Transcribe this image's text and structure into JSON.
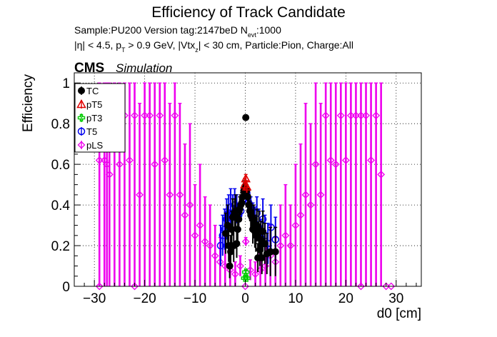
{
  "chart_data": {
    "type": "scatter",
    "title": "Efficiency of Track Candidate",
    "subtitle_lines": [
      "Sample:PU200   Version tag:2147beD  N_evt:1000",
      "|η| < 4.5, p_T > 0.9 GeV, |Vtx_z| < 30 cm, Particle:Pion, Charge:All"
    ],
    "subtitle1": {
      "main": "Sample:PU200   Version tag:2147beD  N",
      "sub": "evt",
      "tail": ":1000"
    },
    "subtitle2": {
      "a": "|η| < 4.5, p",
      "a_sub": "T",
      "b": " > 0.9 GeV, |Vtx",
      "b_sub": "z",
      "c": "| < 30 cm, Particle:Pion, Charge:All"
    },
    "cms_label": "CMS",
    "simulation_label": "Simulation",
    "xlabel": "d0 [cm]",
    "ylabel": "Efficiency",
    "xlim": [
      -34,
      35
    ],
    "ylim": [
      0,
      1.05
    ],
    "x_ticks": [
      -30,
      -20,
      -10,
      0,
      10,
      20,
      30
    ],
    "x_tick_labels": [
      "−30",
      "−20",
      "−10",
      "0",
      "10",
      "20",
      "30"
    ],
    "y_ticks": [
      0,
      0.2,
      0.4,
      0.6,
      0.8,
      1
    ],
    "y_tick_labels": [
      "0",
      "0.2",
      "0.4",
      "0.6",
      "0.8",
      "1"
    ],
    "grid": true,
    "legend_position": "top-left",
    "series": [
      {
        "name": "TC",
        "color": "#000000",
        "marker": "filled-circle",
        "points": [
          {
            "x": -3.9,
            "y": 0.26,
            "err": 0.1
          },
          {
            "x": -3.5,
            "y": 0.3,
            "err": 0.1
          },
          {
            "x": -3.3,
            "y": 0.2,
            "err": 0.08
          },
          {
            "x": -3.1,
            "y": 0.1,
            "err": 0.06
          },
          {
            "x": -2.9,
            "y": 0.17,
            "err": 0.08
          },
          {
            "x": -2.7,
            "y": 0.28,
            "err": 0.09
          },
          {
            "x": -2.5,
            "y": 0.34,
            "err": 0.09
          },
          {
            "x": -2.3,
            "y": 0.2,
            "err": 0.08
          },
          {
            "x": -2.1,
            "y": 0.35,
            "err": 0.08
          },
          {
            "x": -1.9,
            "y": 0.37,
            "err": 0.08
          },
          {
            "x": -1.7,
            "y": 0.21,
            "err": 0.07
          },
          {
            "x": -1.5,
            "y": 0.28,
            "err": 0.07
          },
          {
            "x": -1.3,
            "y": 0.33,
            "err": 0.06
          },
          {
            "x": -1.1,
            "y": 0.38,
            "err": 0.06
          },
          {
            "x": -0.9,
            "y": 0.4,
            "err": 0.05
          },
          {
            "x": -0.7,
            "y": 0.41,
            "err": 0.05
          },
          {
            "x": -0.5,
            "y": 0.44,
            "err": 0.04
          },
          {
            "x": -0.3,
            "y": 0.47,
            "err": 0.03
          },
          {
            "x": -0.1,
            "y": 0.49,
            "err": 0.03
          },
          {
            "x": 0.1,
            "y": 0.83,
            "err": 0.01
          },
          {
            "x": 0.3,
            "y": 0.47,
            "err": 0.03
          },
          {
            "x": 0.5,
            "y": 0.44,
            "err": 0.04
          },
          {
            "x": 0.7,
            "y": 0.4,
            "err": 0.05
          },
          {
            "x": 0.9,
            "y": 0.37,
            "err": 0.05
          },
          {
            "x": 1.1,
            "y": 0.35,
            "err": 0.06
          },
          {
            "x": 1.3,
            "y": 0.34,
            "err": 0.06
          },
          {
            "x": 1.5,
            "y": 0.28,
            "err": 0.07
          },
          {
            "x": 1.7,
            "y": 0.33,
            "err": 0.07
          },
          {
            "x": 1.9,
            "y": 0.27,
            "err": 0.08
          },
          {
            "x": 2.1,
            "y": 0.25,
            "err": 0.08
          },
          {
            "x": 2.3,
            "y": 0.3,
            "err": 0.08
          },
          {
            "x": 2.5,
            "y": 0.14,
            "err": 0.07
          },
          {
            "x": 2.7,
            "y": 0.28,
            "err": 0.09
          },
          {
            "x": 2.9,
            "y": 0.18,
            "err": 0.08
          },
          {
            "x": 3.1,
            "y": 0.23,
            "err": 0.09
          },
          {
            "x": 3.3,
            "y": 0.14,
            "err": 0.08
          },
          {
            "x": 3.5,
            "y": 0.27,
            "err": 0.1
          },
          {
            "x": 3.9,
            "y": 0.21,
            "err": 0.1
          },
          {
            "x": 4.3,
            "y": 0.16,
            "err": 0.1
          },
          {
            "x": 5.0,
            "y": 0.17,
            "err": 0.12
          },
          {
            "x": 6.0,
            "y": 0.17,
            "err": 0.12
          }
        ]
      },
      {
        "name": "pT5",
        "color": "#e00000",
        "marker": "open-triangle",
        "points": [
          {
            "x": -0.1,
            "y": 0.5,
            "err": 0.03
          },
          {
            "x": 0.1,
            "y": 0.53,
            "err": 0.02
          },
          {
            "x": 0.3,
            "y": 0.49,
            "err": 0.03
          }
        ]
      },
      {
        "name": "pT3",
        "color": "#00cc00",
        "marker": "open-cross",
        "points": [
          {
            "x": -0.1,
            "y": 0.04,
            "err": 0.01
          },
          {
            "x": 0.1,
            "y": 0.07,
            "err": 0.01
          },
          {
            "x": 0.3,
            "y": 0.04,
            "err": 0.01
          }
        ]
      },
      {
        "name": "T5",
        "color": "#0000ee",
        "marker": "open-circle",
        "points": [
          {
            "x": -4.9,
            "y": 0.2,
            "err": 0.1
          },
          {
            "x": -4.5,
            "y": 0.25,
            "err": 0.1
          },
          {
            "x": -4.1,
            "y": 0.28,
            "err": 0.1
          },
          {
            "x": -3.7,
            "y": 0.33,
            "err": 0.1
          },
          {
            "x": -3.3,
            "y": 0.36,
            "err": 0.09
          },
          {
            "x": -2.9,
            "y": 0.39,
            "err": 0.09
          },
          {
            "x": -2.5,
            "y": 0.36,
            "err": 0.09
          },
          {
            "x": -2.1,
            "y": 0.4,
            "err": 0.08
          },
          {
            "x": -1.7,
            "y": 0.38,
            "err": 0.07
          },
          {
            "x": -1.3,
            "y": 0.35,
            "err": 0.06
          },
          {
            "x": -0.9,
            "y": 0.37,
            "err": 0.05
          },
          {
            "x": -0.5,
            "y": 0.43,
            "err": 0.04
          },
          {
            "x": -0.1,
            "y": 0.48,
            "err": 0.03
          },
          {
            "x": 0.3,
            "y": 0.45,
            "err": 0.03
          },
          {
            "x": 0.7,
            "y": 0.41,
            "err": 0.05
          },
          {
            "x": 1.1,
            "y": 0.38,
            "err": 0.06
          },
          {
            "x": 1.5,
            "y": 0.34,
            "err": 0.07
          },
          {
            "x": 1.9,
            "y": 0.31,
            "err": 0.08
          },
          {
            "x": 2.3,
            "y": 0.36,
            "err": 0.08
          },
          {
            "x": 2.7,
            "y": 0.29,
            "err": 0.09
          },
          {
            "x": 3.1,
            "y": 0.24,
            "err": 0.09
          },
          {
            "x": 3.5,
            "y": 0.33,
            "err": 0.1
          },
          {
            "x": 3.9,
            "y": 0.25,
            "err": 0.1
          },
          {
            "x": 4.5,
            "y": 0.21,
            "err": 0.1
          },
          {
            "x": 5.1,
            "y": 0.29,
            "err": 0.11
          },
          {
            "x": 6.0,
            "y": 0.23,
            "err": 0.11
          }
        ]
      },
      {
        "name": "pLS",
        "color": "#ee00ee",
        "marker": "open-diamond",
        "points": [
          {
            "x": -29,
            "y": 0.62,
            "err": 0.62
          },
          {
            "x": -28,
            "y": 0.62,
            "err": 0.62
          },
          {
            "x": -27.5,
            "y": 0.6,
            "err": 0.6
          },
          {
            "x": -27,
            "y": 0.55,
            "err": 0.55
          },
          {
            "x": -26,
            "y": 0.84,
            "err": 0.84
          },
          {
            "x": -25,
            "y": 0.6,
            "err": 0.6
          },
          {
            "x": -24,
            "y": 0.84,
            "err": 0.84
          },
          {
            "x": -23,
            "y": 0.62,
            "err": 0.62
          },
          {
            "x": -22,
            "y": 0.84,
            "err": 0.84
          },
          {
            "x": -21,
            "y": 0.45,
            "err": 0.45
          },
          {
            "x": -20,
            "y": 0.84,
            "err": 0.84
          },
          {
            "x": -19,
            "y": 0.84,
            "err": 0.84
          },
          {
            "x": -18,
            "y": 0.6,
            "err": 0.6
          },
          {
            "x": -17,
            "y": 0.84,
            "err": 0.84
          },
          {
            "x": -16,
            "y": 0.62,
            "err": 0.62
          },
          {
            "x": -15,
            "y": 0.45,
            "err": 0.45
          },
          {
            "x": -14,
            "y": 0.84,
            "err": 0.84
          },
          {
            "x": -13,
            "y": 0.45,
            "err": 0.45
          },
          {
            "x": -12,
            "y": 0.35,
            "err": 0.35
          },
          {
            "x": -11,
            "y": 0.4,
            "err": 0.4
          },
          {
            "x": -10,
            "y": 0.25,
            "err": 0.25
          },
          {
            "x": -9,
            "y": 0.3,
            "err": 0.3
          },
          {
            "x": -8,
            "y": 0.22,
            "err": 0.22
          },
          {
            "x": -7,
            "y": 0.2,
            "err": 0.2
          },
          {
            "x": -6,
            "y": 0.15,
            "err": 0.15
          },
          {
            "x": -5,
            "y": 0.12,
            "err": 0.12
          },
          {
            "x": -4,
            "y": 0.1,
            "err": 0.1
          },
          {
            "x": -3,
            "y": 0.08,
            "err": 0.08
          },
          {
            "x": -2,
            "y": 0.06,
            "err": 0.06
          },
          {
            "x": -1,
            "y": 0.1,
            "err": 0.05
          },
          {
            "x": 0.1,
            "y": 0.22,
            "err": 0.02
          },
          {
            "x": 1,
            "y": 0.08,
            "err": 0.05
          },
          {
            "x": 2,
            "y": 0.06,
            "err": 0.06
          },
          {
            "x": 3,
            "y": 0.08,
            "err": 0.08
          },
          {
            "x": 4,
            "y": 0.1,
            "err": 0.1
          },
          {
            "x": 5,
            "y": 0.15,
            "err": 0.15
          },
          {
            "x": 6,
            "y": 0.12,
            "err": 0.12
          },
          {
            "x": 7,
            "y": 0.2,
            "err": 0.2
          },
          {
            "x": 8,
            "y": 0.25,
            "err": 0.25
          },
          {
            "x": 9,
            "y": 0.2,
            "err": 0.2
          },
          {
            "x": 10,
            "y": 0.3,
            "err": 0.3
          },
          {
            "x": 11,
            "y": 0.35,
            "err": 0.35
          },
          {
            "x": 12,
            "y": 0.45,
            "err": 0.45
          },
          {
            "x": 13,
            "y": 0.4,
            "err": 0.4
          },
          {
            "x": 14,
            "y": 0.6,
            "err": 0.6
          },
          {
            "x": 15,
            "y": 0.45,
            "err": 0.45
          },
          {
            "x": 16,
            "y": 0.84,
            "err": 0.84
          },
          {
            "x": 17,
            "y": 0.62,
            "err": 0.62
          },
          {
            "x": 18,
            "y": 0.6,
            "err": 0.6
          },
          {
            "x": 19,
            "y": 0.84,
            "err": 0.84
          },
          {
            "x": 20,
            "y": 0.62,
            "err": 0.62
          },
          {
            "x": 21,
            "y": 0.84,
            "err": 0.84
          },
          {
            "x": 22,
            "y": 0.84,
            "err": 0.84
          },
          {
            "x": 23,
            "y": 0.84,
            "err": 0.84
          },
          {
            "x": 24,
            "y": 0.84,
            "err": 0.84
          },
          {
            "x": 25,
            "y": 0.62,
            "err": 0.62
          },
          {
            "x": 26,
            "y": 0.84,
            "err": 0.84
          },
          {
            "x": 27,
            "y": 0.55,
            "err": 0.55
          }
        ]
      }
    ]
  }
}
